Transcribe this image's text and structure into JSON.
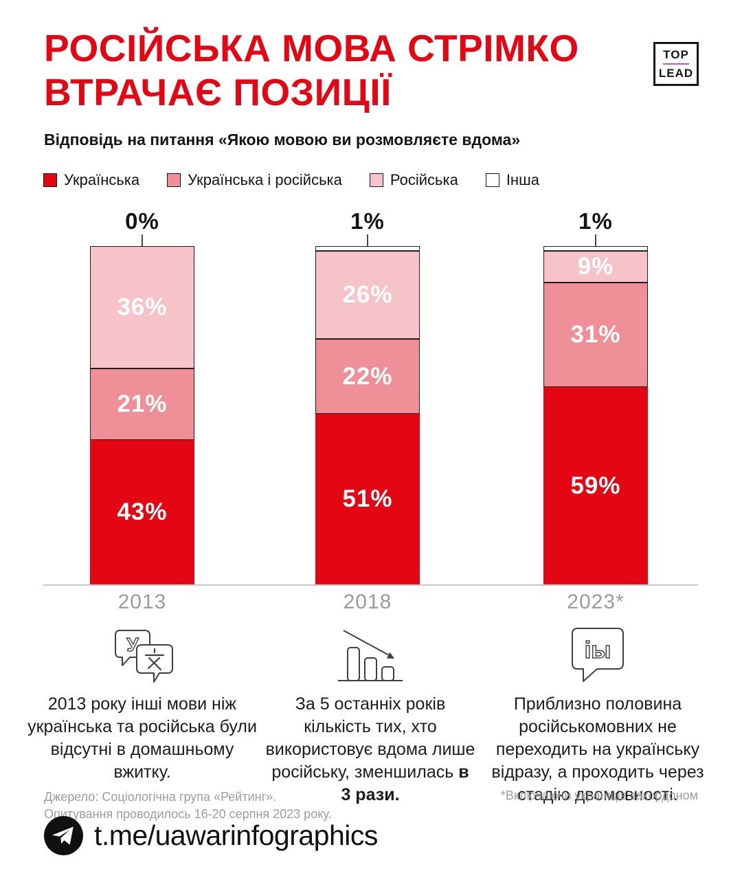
{
  "header": {
    "title_line1": "РОСІЙСЬКА МОВА СТРІМКО",
    "title_line2": "ВТРАЧАЄ ПОЗИЦІЇ",
    "subtitle": "Відповідь на питання «Якою мовою ви розмовляєте вдома»",
    "logo": {
      "top": "TOP",
      "lead": "LEAD"
    }
  },
  "chart_data": {
    "type": "bar",
    "stacked": true,
    "unit": "%",
    "ylim": [
      0,
      100
    ],
    "grid": false,
    "legend_position": "top",
    "categories": [
      "2013",
      "2018",
      "2023*"
    ],
    "series": [
      {
        "name": "Українська",
        "color": "#e30613",
        "values": [
          43,
          51,
          59
        ]
      },
      {
        "name": "Українська і російська",
        "color": "#ef8f97",
        "values": [
          21,
          22,
          31
        ]
      },
      {
        "name": "Російська",
        "color": "#f6c3c9",
        "values": [
          36,
          26,
          9
        ]
      },
      {
        "name": "Інша",
        "color": "#ffffff",
        "values": [
          0,
          1,
          1
        ]
      }
    ],
    "top_labels": [
      "0%",
      "1%",
      "1%"
    ]
  },
  "info_blocks": [
    {
      "icon": "translate-bubbles-icon",
      "text": "2013 року інші мови ніж українська та російська були відсутні в домашньому вжитку.",
      "bold": ""
    },
    {
      "icon": "declining-bars-arrow-icon",
      "text": "За 5 останніх років кількість тих, хто використовує вдома лише російську, зменшилась ",
      "bold": "в 3 рази."
    },
    {
      "icon": "bilingual-speech-bubble-icon",
      "text": "Приблизно половина російськомовних не переходить на українську відразу, а проходить через стадію двомовності.",
      "bold": ""
    }
  ],
  "source": {
    "line1": "Джерело: Соціологічна група «Рейтинг».",
    "line2": "Опитування проводилось 16-20 серпня 2023 року."
  },
  "footnote": "*Включаючи українців закордоном",
  "footer": {
    "handle": "t.me/uawarinfographics"
  },
  "colors": {
    "brand_red": "#e30613",
    "medium_pink": "#ef8f97",
    "light_pink": "#f6c3c9",
    "other_white": "#ffffff",
    "ink": "#141414",
    "muted": "#9b9b9b",
    "axis_gray": "#c6c6c6",
    "logo_line": "#c257bd"
  }
}
